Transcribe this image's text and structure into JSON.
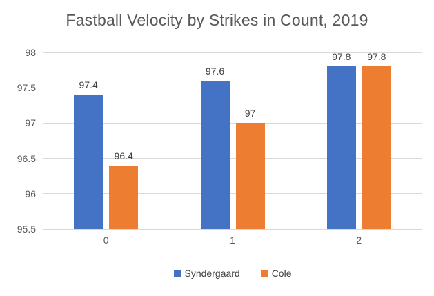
{
  "chart_data": {
    "type": "bar",
    "title": "Fastball Velocity by Strikes in Count, 2019",
    "categories": [
      "0",
      "1",
      "2"
    ],
    "series": [
      {
        "name": "Syndergaard",
        "color": "#4472C4",
        "values": [
          97.4,
          97.6,
          97.8
        ],
        "labels": [
          "97.4",
          "97.6",
          "97.8"
        ]
      },
      {
        "name": "Cole",
        "color": "#ED7D31",
        "values": [
          96.4,
          97.0,
          97.8
        ],
        "labels": [
          "96.4",
          "97",
          "97.8"
        ]
      }
    ],
    "xlabel": "",
    "ylabel": "",
    "ylim": [
      95.5,
      98
    ],
    "yticks": {
      "values": [
        95.5,
        96,
        96.5,
        97,
        97.5,
        98
      ],
      "labels": [
        "95.5",
        "96",
        "96.5",
        "97",
        "97.5",
        "98"
      ]
    },
    "grid": true,
    "legend_position": "bottom",
    "styles": {
      "grid_color": "#D9D9D9",
      "axis_text_color": "#595959",
      "data_label_color": "#404040",
      "title_color": "#595959",
      "legend_text_color": "#404040"
    }
  }
}
